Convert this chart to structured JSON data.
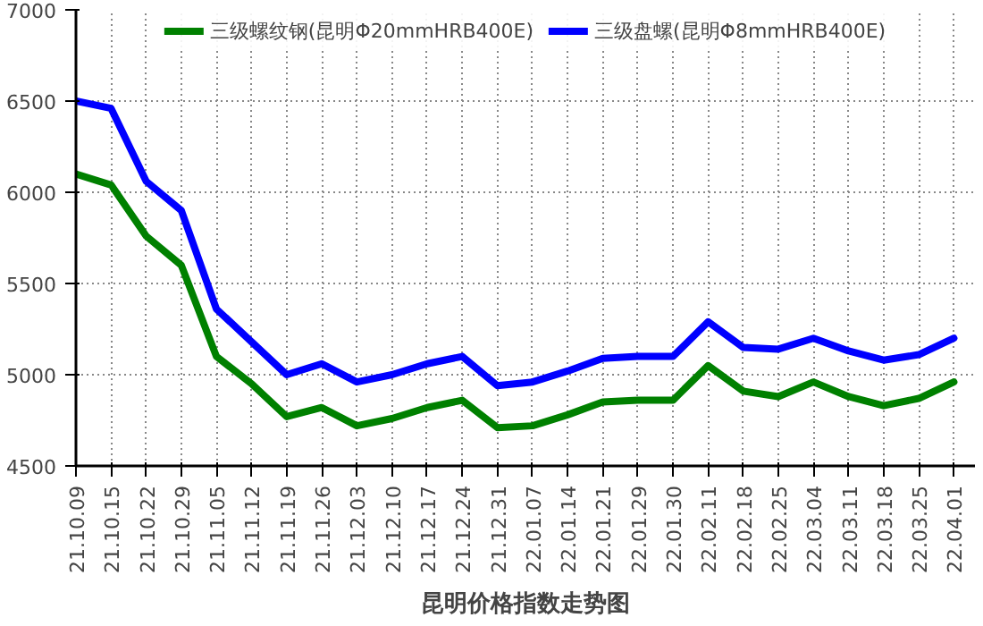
{
  "chart_data": {
    "type": "line",
    "title": "昆明价格指数走势图",
    "categories": [
      "21.10.09",
      "21.10.15",
      "21.10.22",
      "21.10.29",
      "21.11.05",
      "21.11.12",
      "21.11.19",
      "21.11.26",
      "21.12.03",
      "21.12.10",
      "21.12.17",
      "21.12.24",
      "21.12.31",
      "22.01.07",
      "22.01.14",
      "22.01.21",
      "22.01.29",
      "22.01.30",
      "22.02.11",
      "22.02.18",
      "22.02.25",
      "22.03.04",
      "22.03.11",
      "22.03.18",
      "22.03.25",
      "22.04.01"
    ],
    "series": [
      {
        "name": "三级螺纹钢(昆明Φ20mmHRB400E)",
        "color": "#008000",
        "values": [
          6100,
          6040,
          5760,
          5600,
          5100,
          4950,
          4770,
          4820,
          4720,
          4760,
          4820,
          4860,
          4710,
          4720,
          4780,
          4850,
          4860,
          4860,
          5050,
          4910,
          4880,
          4960,
          4880,
          4830,
          4870,
          4960
        ]
      },
      {
        "name": "三级盘螺(昆明Φ8mmHRB400E)",
        "color": "#0000ff",
        "values": [
          6500,
          6460,
          6060,
          5900,
          5360,
          5180,
          5000,
          5060,
          4960,
          5000,
          5060,
          5100,
          4940,
          4960,
          5020,
          5090,
          5100,
          5100,
          5290,
          5150,
          5140,
          5200,
          5130,
          5080,
          5110,
          5200
        ]
      }
    ],
    "ylim": [
      4500,
      7000
    ],
    "yticks": [
      4500,
      5000,
      5500,
      6000,
      6500,
      7000
    ],
    "grid": true,
    "legend": "top",
    "marker": "none",
    "line_style": "solid"
  }
}
